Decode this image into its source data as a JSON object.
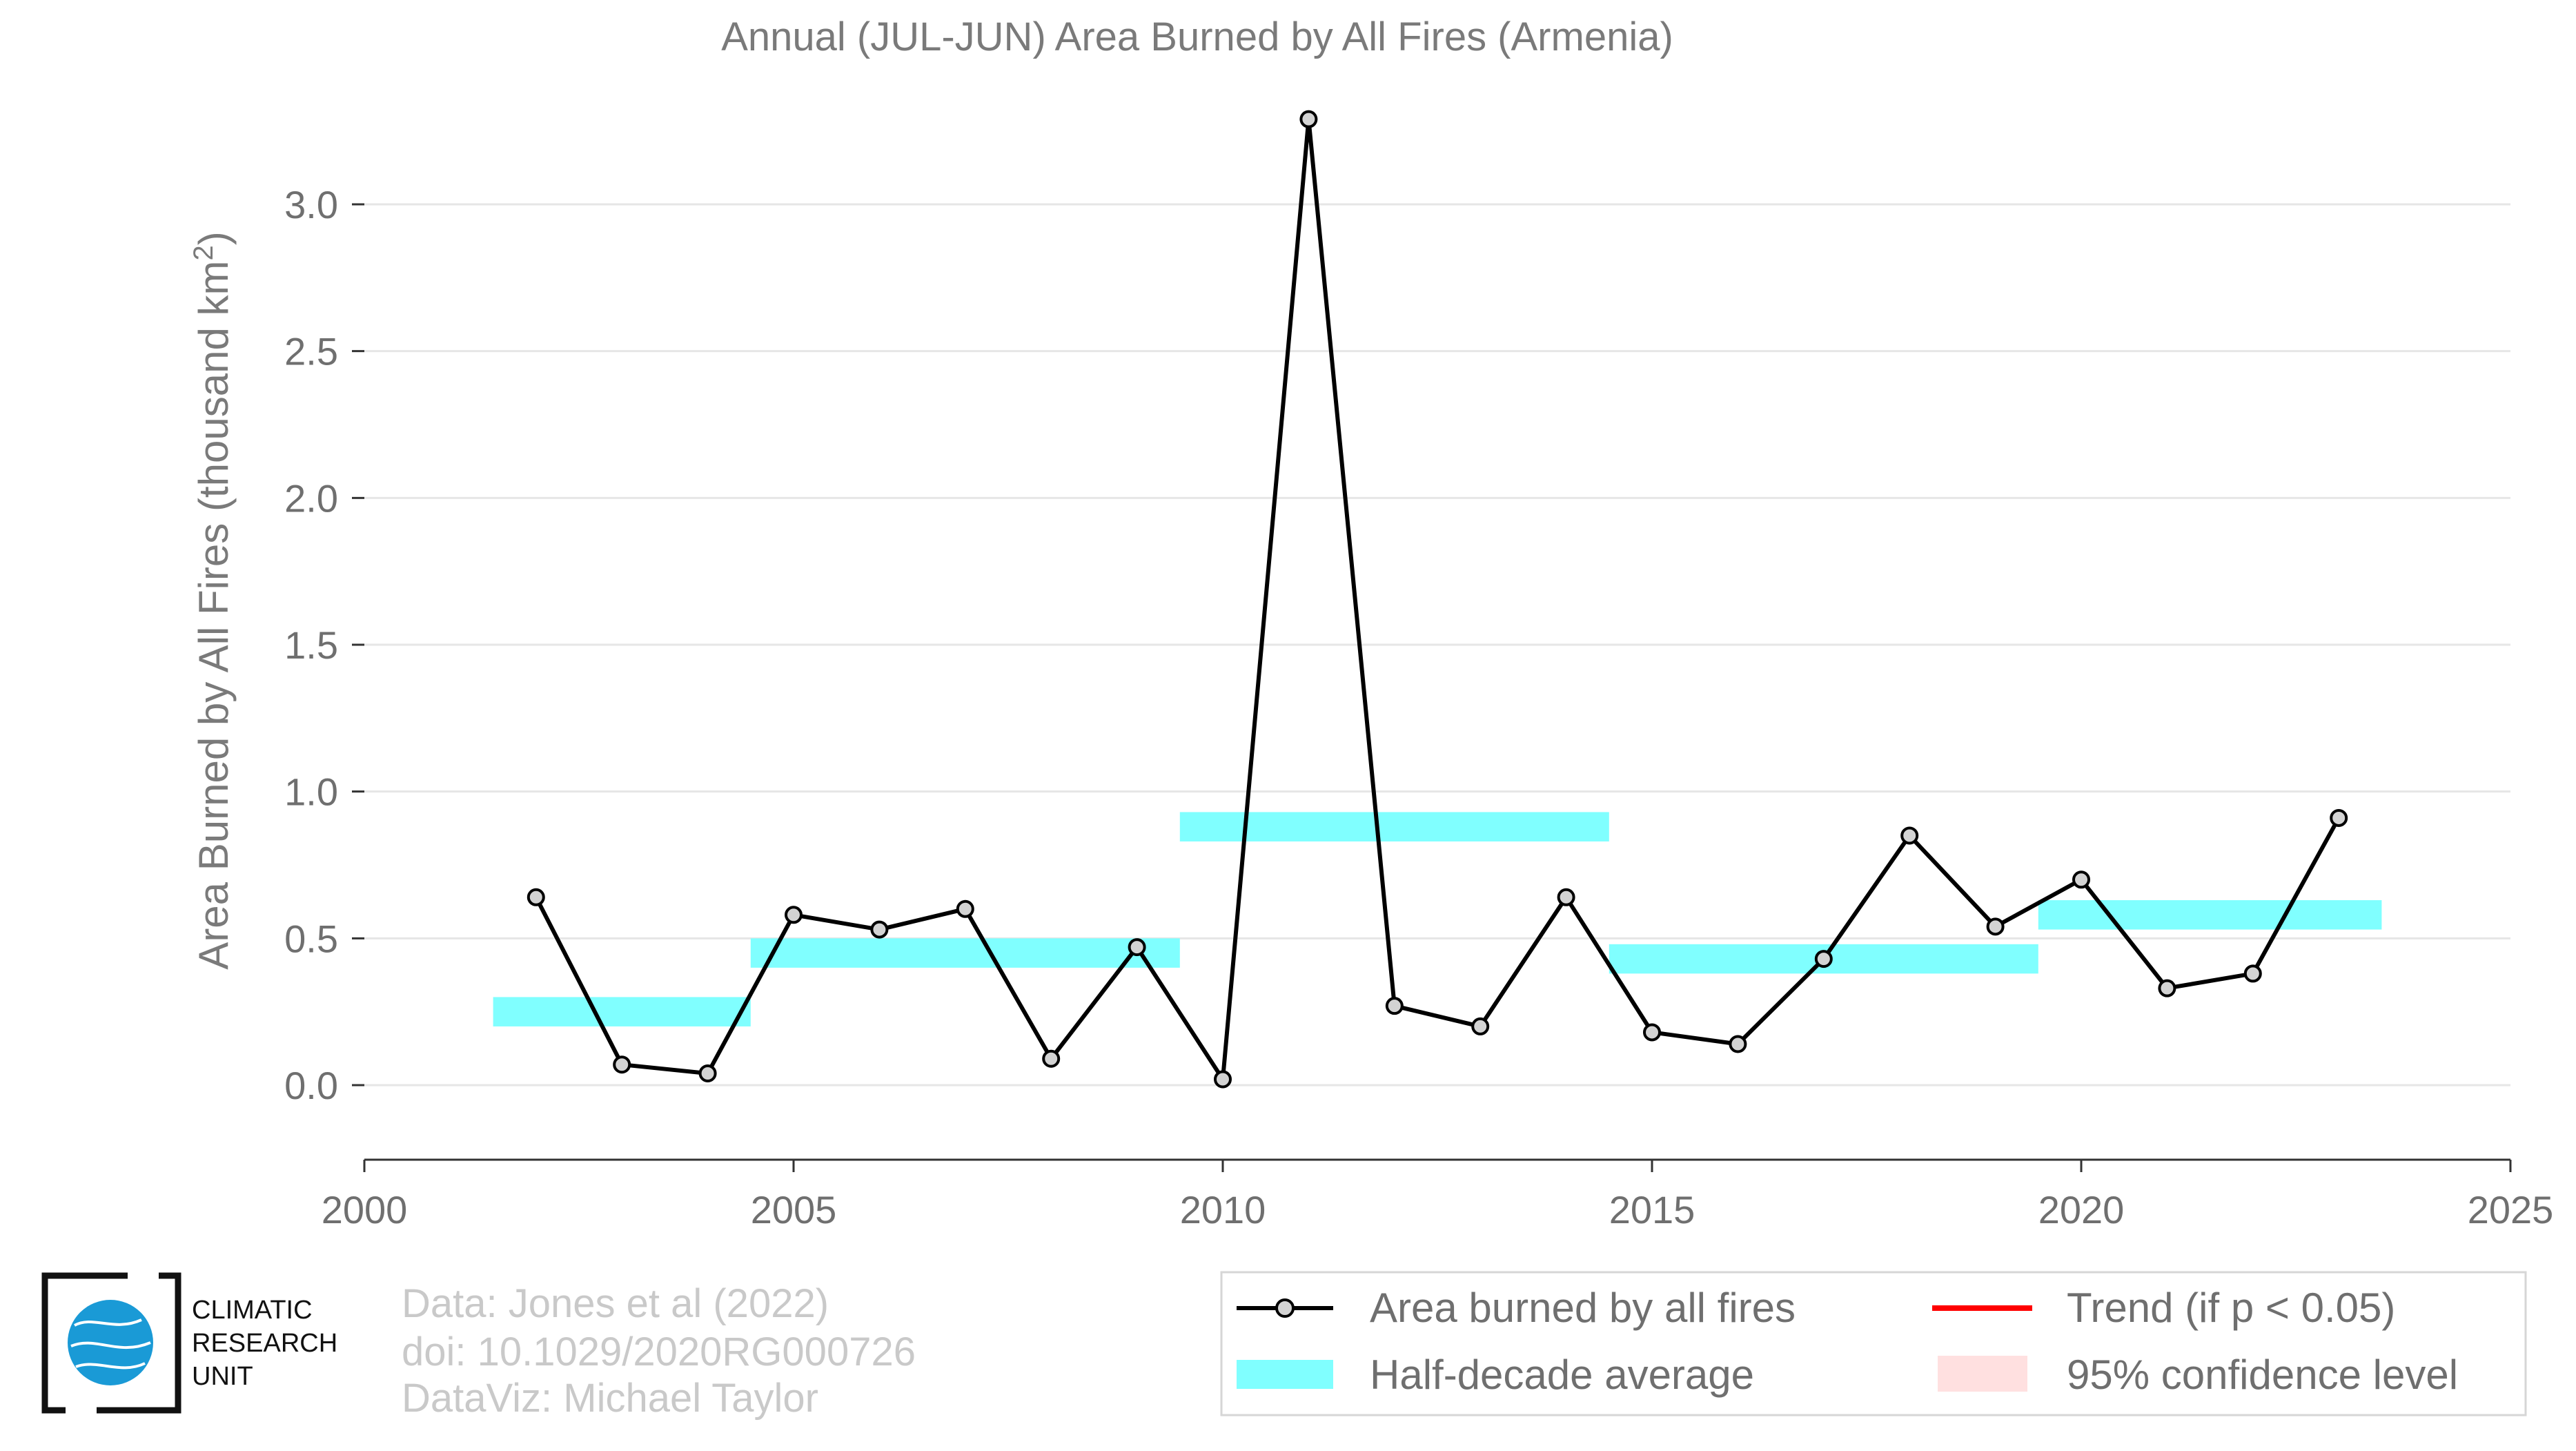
{
  "chart_data": {
    "type": "line",
    "title": "Annual (JUL-JUN) Area Burned by All Fires (Armenia)",
    "xlabel": "",
    "ylabel": "Area Burned by All Fires (thousand km",
    "ylabel_sup": "2",
    "ylabel_close": ")",
    "xlim": [
      2000,
      2025
    ],
    "ylim": [
      -0.25,
      3.4
    ],
    "xticks": [
      2000,
      2005,
      2010,
      2015,
      2020,
      2025
    ],
    "yticks": [
      0.0,
      0.5,
      1.0,
      1.5,
      2.0,
      2.5,
      3.0
    ],
    "ytick_labels": [
      "0.0",
      "0.5",
      "1.0",
      "1.5",
      "2.0",
      "2.5",
      "3.0"
    ],
    "grid": "horizontal",
    "series": [
      {
        "name": "Area burned by all fires",
        "color": "#000000",
        "marker_fill": "#d3d3d3",
        "x": [
          2002,
          2003,
          2004,
          2005,
          2006,
          2007,
          2008,
          2009,
          2010,
          2011,
          2012,
          2013,
          2014,
          2015,
          2016,
          2017,
          2018,
          2019,
          2020,
          2021,
          2022,
          2023
        ],
        "values": [
          0.64,
          0.07,
          0.04,
          0.58,
          0.53,
          0.6,
          0.09,
          0.47,
          0.02,
          3.29,
          0.27,
          0.2,
          0.64,
          0.18,
          0.14,
          0.43,
          0.85,
          0.54,
          0.7,
          0.33,
          0.38,
          0.91
        ]
      }
    ],
    "half_decade_average": {
      "name": "Half-decade average",
      "color": "#80ffff",
      "segments": [
        {
          "start": 2001.5,
          "end": 2004.5,
          "value": 0.25
        },
        {
          "start": 2004.5,
          "end": 2009.5,
          "value": 0.45
        },
        {
          "start": 2009.5,
          "end": 2014.5,
          "value": 0.88
        },
        {
          "start": 2014.5,
          "end": 2019.5,
          "value": 0.43
        },
        {
          "start": 2019.5,
          "end": 2023.5,
          "value": 0.58
        }
      ]
    },
    "legend": {
      "placement": "bottom-right",
      "items": [
        {
          "label": "Area burned by all fires",
          "kind": "line-marker",
          "color": "#000000"
        },
        {
          "label": "Trend (if p < 0.05)",
          "kind": "line",
          "color": "#ff0000"
        },
        {
          "label": "Half-decade average",
          "kind": "band",
          "color": "#80ffff"
        },
        {
          "label": "95% confidence level",
          "kind": "patch",
          "color": "#ffe0e0"
        }
      ]
    }
  },
  "credits": {
    "line1": "Data: Jones et al (2022)",
    "line2": "doi: 10.1029/2020RG000726",
    "line3": "DataViz: Michael Taylor"
  },
  "logo": {
    "line1": "CLIMATIC",
    "line2": "RESEARCH",
    "line3": "UNIT",
    "globe_color": "#1a9ad6"
  }
}
